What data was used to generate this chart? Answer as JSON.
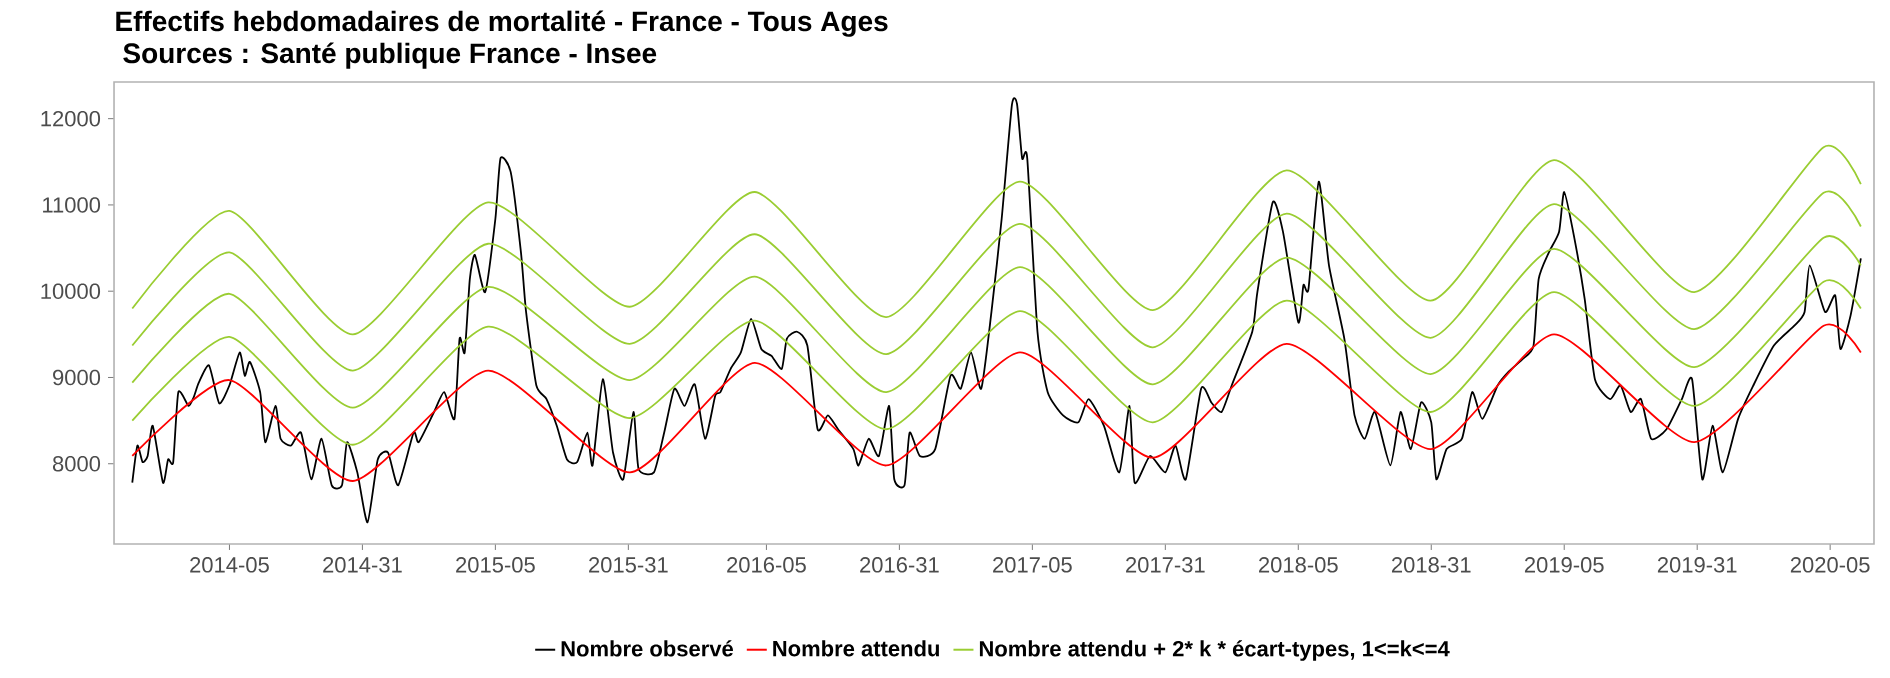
{
  "chart_data": {
    "type": "line",
    "title": "Effectifs hebdomadaires de mortalité  - France - Tous Ages",
    "subtitle": "Sources : Santé publique France - Insee",
    "x": [
      "2013-09-16",
      "2014-01-27",
      "2014-07-15",
      "2015-01-16",
      "2015-07-29",
      "2016-01-16",
      "2016-07-14",
      "2017-01-13",
      "2017-07-14",
      "2018-01-13",
      "2018-07-29",
      "2019-01-14",
      "2019-07-25",
      "2020-01-18",
      "2020-03-09"
    ],
    "series": [
      {
        "name": "Nombre observé",
        "color": "#000000",
        "x": [
          "2013-09-16",
          "2013-09-23",
          "2013-09-30",
          "2013-10-07",
          "2013-10-14",
          "2013-10-28",
          "2013-11-04",
          "2013-11-11",
          "2013-11-18",
          "2013-12-02",
          "2013-12-09",
          "2013-12-16",
          "2013-12-30",
          "2014-01-13",
          "2014-01-27",
          "2014-02-10",
          "2014-02-17",
          "2014-02-24",
          "2014-03-10",
          "2014-03-17",
          "2014-03-31",
          "2014-04-07",
          "2014-04-21",
          "2014-05-05",
          "2014-05-19",
          "2014-06-02",
          "2014-06-16",
          "2014-06-30",
          "2014-07-07",
          "2014-07-21",
          "2014-08-04",
          "2014-08-18",
          "2014-09-01",
          "2014-09-15",
          "2014-10-06",
          "2014-10-13",
          "2014-11-03",
          "2014-11-17",
          "2014-12-01",
          "2014-12-08",
          "2014-12-15",
          "2014-12-22",
          "2014-12-29",
          "2015-01-12",
          "2015-01-26",
          "2015-02-02",
          "2015-02-16",
          "2015-03-02",
          "2015-03-09",
          "2015-03-23",
          "2015-04-06",
          "2015-04-20",
          "2015-05-04",
          "2015-05-18",
          "2015-06-01",
          "2015-06-08",
          "2015-06-22",
          "2015-07-06",
          "2015-07-20",
          "2015-08-03",
          "2015-08-10",
          "2015-08-31",
          "2015-09-14",
          "2015-09-28",
          "2015-10-12",
          "2015-10-26",
          "2015-11-09",
          "2015-11-23",
          "2015-11-30",
          "2015-12-14",
          "2015-12-28",
          "2016-01-11",
          "2016-01-25",
          "2016-02-08",
          "2016-02-22",
          "2016-02-29",
          "2016-03-14",
          "2016-03-28",
          "2016-04-11",
          "2016-04-25",
          "2016-05-09",
          "2016-05-30",
          "2016-06-06",
          "2016-06-20",
          "2016-07-04",
          "2016-07-18",
          "2016-07-25",
          "2016-08-08",
          "2016-08-15",
          "2016-08-29",
          "2016-09-19",
          "2016-10-10",
          "2016-10-24",
          "2016-11-07",
          "2016-11-21",
          "2016-12-05",
          "2016-12-19",
          "2017-01-02",
          "2017-01-09",
          "2017-01-16",
          "2017-01-23",
          "2017-02-06",
          "2017-02-20",
          "2017-03-13",
          "2017-04-03",
          "2017-04-17",
          "2017-05-08",
          "2017-05-29",
          "2017-06-12",
          "2017-06-19",
          "2017-07-10",
          "2017-07-31",
          "2017-08-14",
          "2017-08-28",
          "2017-09-18",
          "2017-10-02",
          "2017-10-16",
          "2017-10-30",
          "2017-11-27",
          "2017-12-04",
          "2017-12-25",
          "2018-01-08",
          "2018-01-29",
          "2018-02-05",
          "2018-02-12",
          "2018-02-26",
          "2018-03-12",
          "2018-04-02",
          "2018-04-16",
          "2018-04-30",
          "2018-05-14",
          "2018-06-04",
          "2018-06-18",
          "2018-07-02",
          "2018-07-16",
          "2018-07-30",
          "2018-08-06",
          "2018-08-20",
          "2018-09-10",
          "2018-09-24",
          "2018-10-08",
          "2018-10-29",
          "2018-11-12",
          "2018-12-03",
          "2018-12-17",
          "2018-12-24",
          "2019-01-07",
          "2019-01-21",
          "2019-01-28",
          "2019-02-11",
          "2019-02-25",
          "2019-03-11",
          "2019-04-01",
          "2019-04-15",
          "2019-04-29",
          "2019-05-13",
          "2019-05-27",
          "2019-06-17",
          "2019-07-08",
          "2019-07-22",
          "2019-08-05",
          "2019-08-19",
          "2019-09-02",
          "2019-09-23",
          "2019-10-14",
          "2019-11-11",
          "2019-12-09",
          "2019-12-23",
          "2019-12-30",
          "2020-01-20",
          "2020-02-03",
          "2020-02-10",
          "2020-02-24",
          "2020-03-09"
        ],
        "values": [
          7780,
          8210,
          8020,
          8090,
          8440,
          7780,
          8050,
          8020,
          8830,
          8670,
          8770,
          8940,
          9140,
          8700,
          8910,
          9290,
          9020,
          9180,
          8830,
          8250,
          8670,
          8290,
          8210,
          8360,
          7820,
          8290,
          7750,
          7750,
          8250,
          7900,
          7320,
          8050,
          8130,
          7750,
          8360,
          8250,
          8600,
          8830,
          8520,
          9450,
          9290,
          10140,
          10420,
          9990,
          10840,
          11540,
          11380,
          10450,
          9760,
          8910,
          8750,
          8440,
          8050,
          8020,
          8360,
          7980,
          8980,
          8130,
          7820,
          8600,
          7940,
          7900,
          8360,
          8870,
          8670,
          8920,
          8290,
          8790,
          8830,
          9100,
          9290,
          9680,
          9330,
          9250,
          9100,
          9450,
          9530,
          9370,
          8400,
          8560,
          8400,
          8170,
          7980,
          8290,
          8090,
          8670,
          7820,
          7750,
          8360,
          8090,
          8170,
          9020,
          8870,
          9290,
          8870,
          9760,
          10840,
          12160,
          12170,
          11540,
          11540,
          9530,
          8830,
          8560,
          8480,
          8750,
          8440,
          7900,
          8670,
          7780,
          8090,
          7900,
          8210,
          7820,
          8870,
          8710,
          8600,
          8910,
          9530,
          9990,
          11030,
          10690,
          9640,
          10070,
          10030,
          11270,
          10300,
          9450,
          8560,
          8290,
          8600,
          7980,
          8600,
          8170,
          8710,
          8480,
          7820,
          8170,
          8290,
          8830,
          8520,
          8910,
          9060,
          9220,
          9370,
          10140,
          10450,
          10690,
          11150,
          10610,
          9910,
          8980,
          8750,
          8910,
          8600,
          8750,
          8290,
          8400,
          8750,
          8980,
          7820,
          8440,
          7900,
          8520,
          8910,
          9370,
          9600,
          9760,
          10300,
          9760,
          9950,
          9330,
          9720,
          10380
        ]
      },
      {
        "name": "Nombre attendu",
        "color": "#ff0000",
        "values": [
          8090,
          8970,
          7800,
          9080,
          7900,
          9170,
          7980,
          9290,
          8070,
          9390,
          8170,
          9500,
          8250,
          9600,
          9290
        ]
      },
      {
        "name": "Nombre attendu + 2* k * écart-types, 1<=k<=4",
        "color": "#9acd32",
        "values": [
          8500,
          9470,
          8220,
          9590,
          8530,
          9660,
          8400,
          9770,
          8480,
          9890,
          8600,
          9990,
          8670,
          10110,
          9800
        ]
      },
      {
        "color": "#9acd32",
        "values": [
          8940,
          9970,
          8650,
          10050,
          8970,
          10170,
          8830,
          10280,
          8920,
          10390,
          9040,
          10490,
          9120,
          10620,
          10300
        ]
      },
      {
        "color": "#9acd32",
        "values": [
          9370,
          10450,
          9080,
          10550,
          9390,
          10660,
          9270,
          10780,
          9350,
          10900,
          9460,
          11010,
          9560,
          11140,
          10750
        ]
      },
      {
        "color": "#9acd32",
        "values": [
          9800,
          10930,
          9500,
          11030,
          9820,
          11150,
          9700,
          11270,
          9780,
          11400,
          9890,
          11520,
          9990,
          11670,
          11240
        ]
      }
    ],
    "xlim": [
      "2013-08-22",
      "2020-03-27"
    ],
    "ylim": [
      7070,
      12425
    ],
    "xticks": [
      {
        "value": "2014-01-27",
        "label": "2014-05"
      },
      {
        "value": "2014-07-28",
        "label": "2014-31"
      },
      {
        "value": "2015-01-26",
        "label": "2015-05"
      },
      {
        "value": "2015-07-27",
        "label": "2015-31"
      },
      {
        "value": "2016-02-01",
        "label": "2016-05"
      },
      {
        "value": "2016-08-01",
        "label": "2016-31"
      },
      {
        "value": "2017-01-30",
        "label": "2017-05"
      },
      {
        "value": "2017-07-31",
        "label": "2017-31"
      },
      {
        "value": "2018-01-29",
        "label": "2018-05"
      },
      {
        "value": "2018-07-30",
        "label": "2018-31"
      },
      {
        "value": "2019-01-28",
        "label": "2019-05"
      },
      {
        "value": "2019-07-29",
        "label": "2019-31"
      },
      {
        "value": "2020-01-27",
        "label": "2020-05"
      }
    ],
    "yticks": [
      8000,
      9000,
      10000,
      11000,
      12000
    ],
    "legend": "bottom",
    "marker": "none"
  }
}
